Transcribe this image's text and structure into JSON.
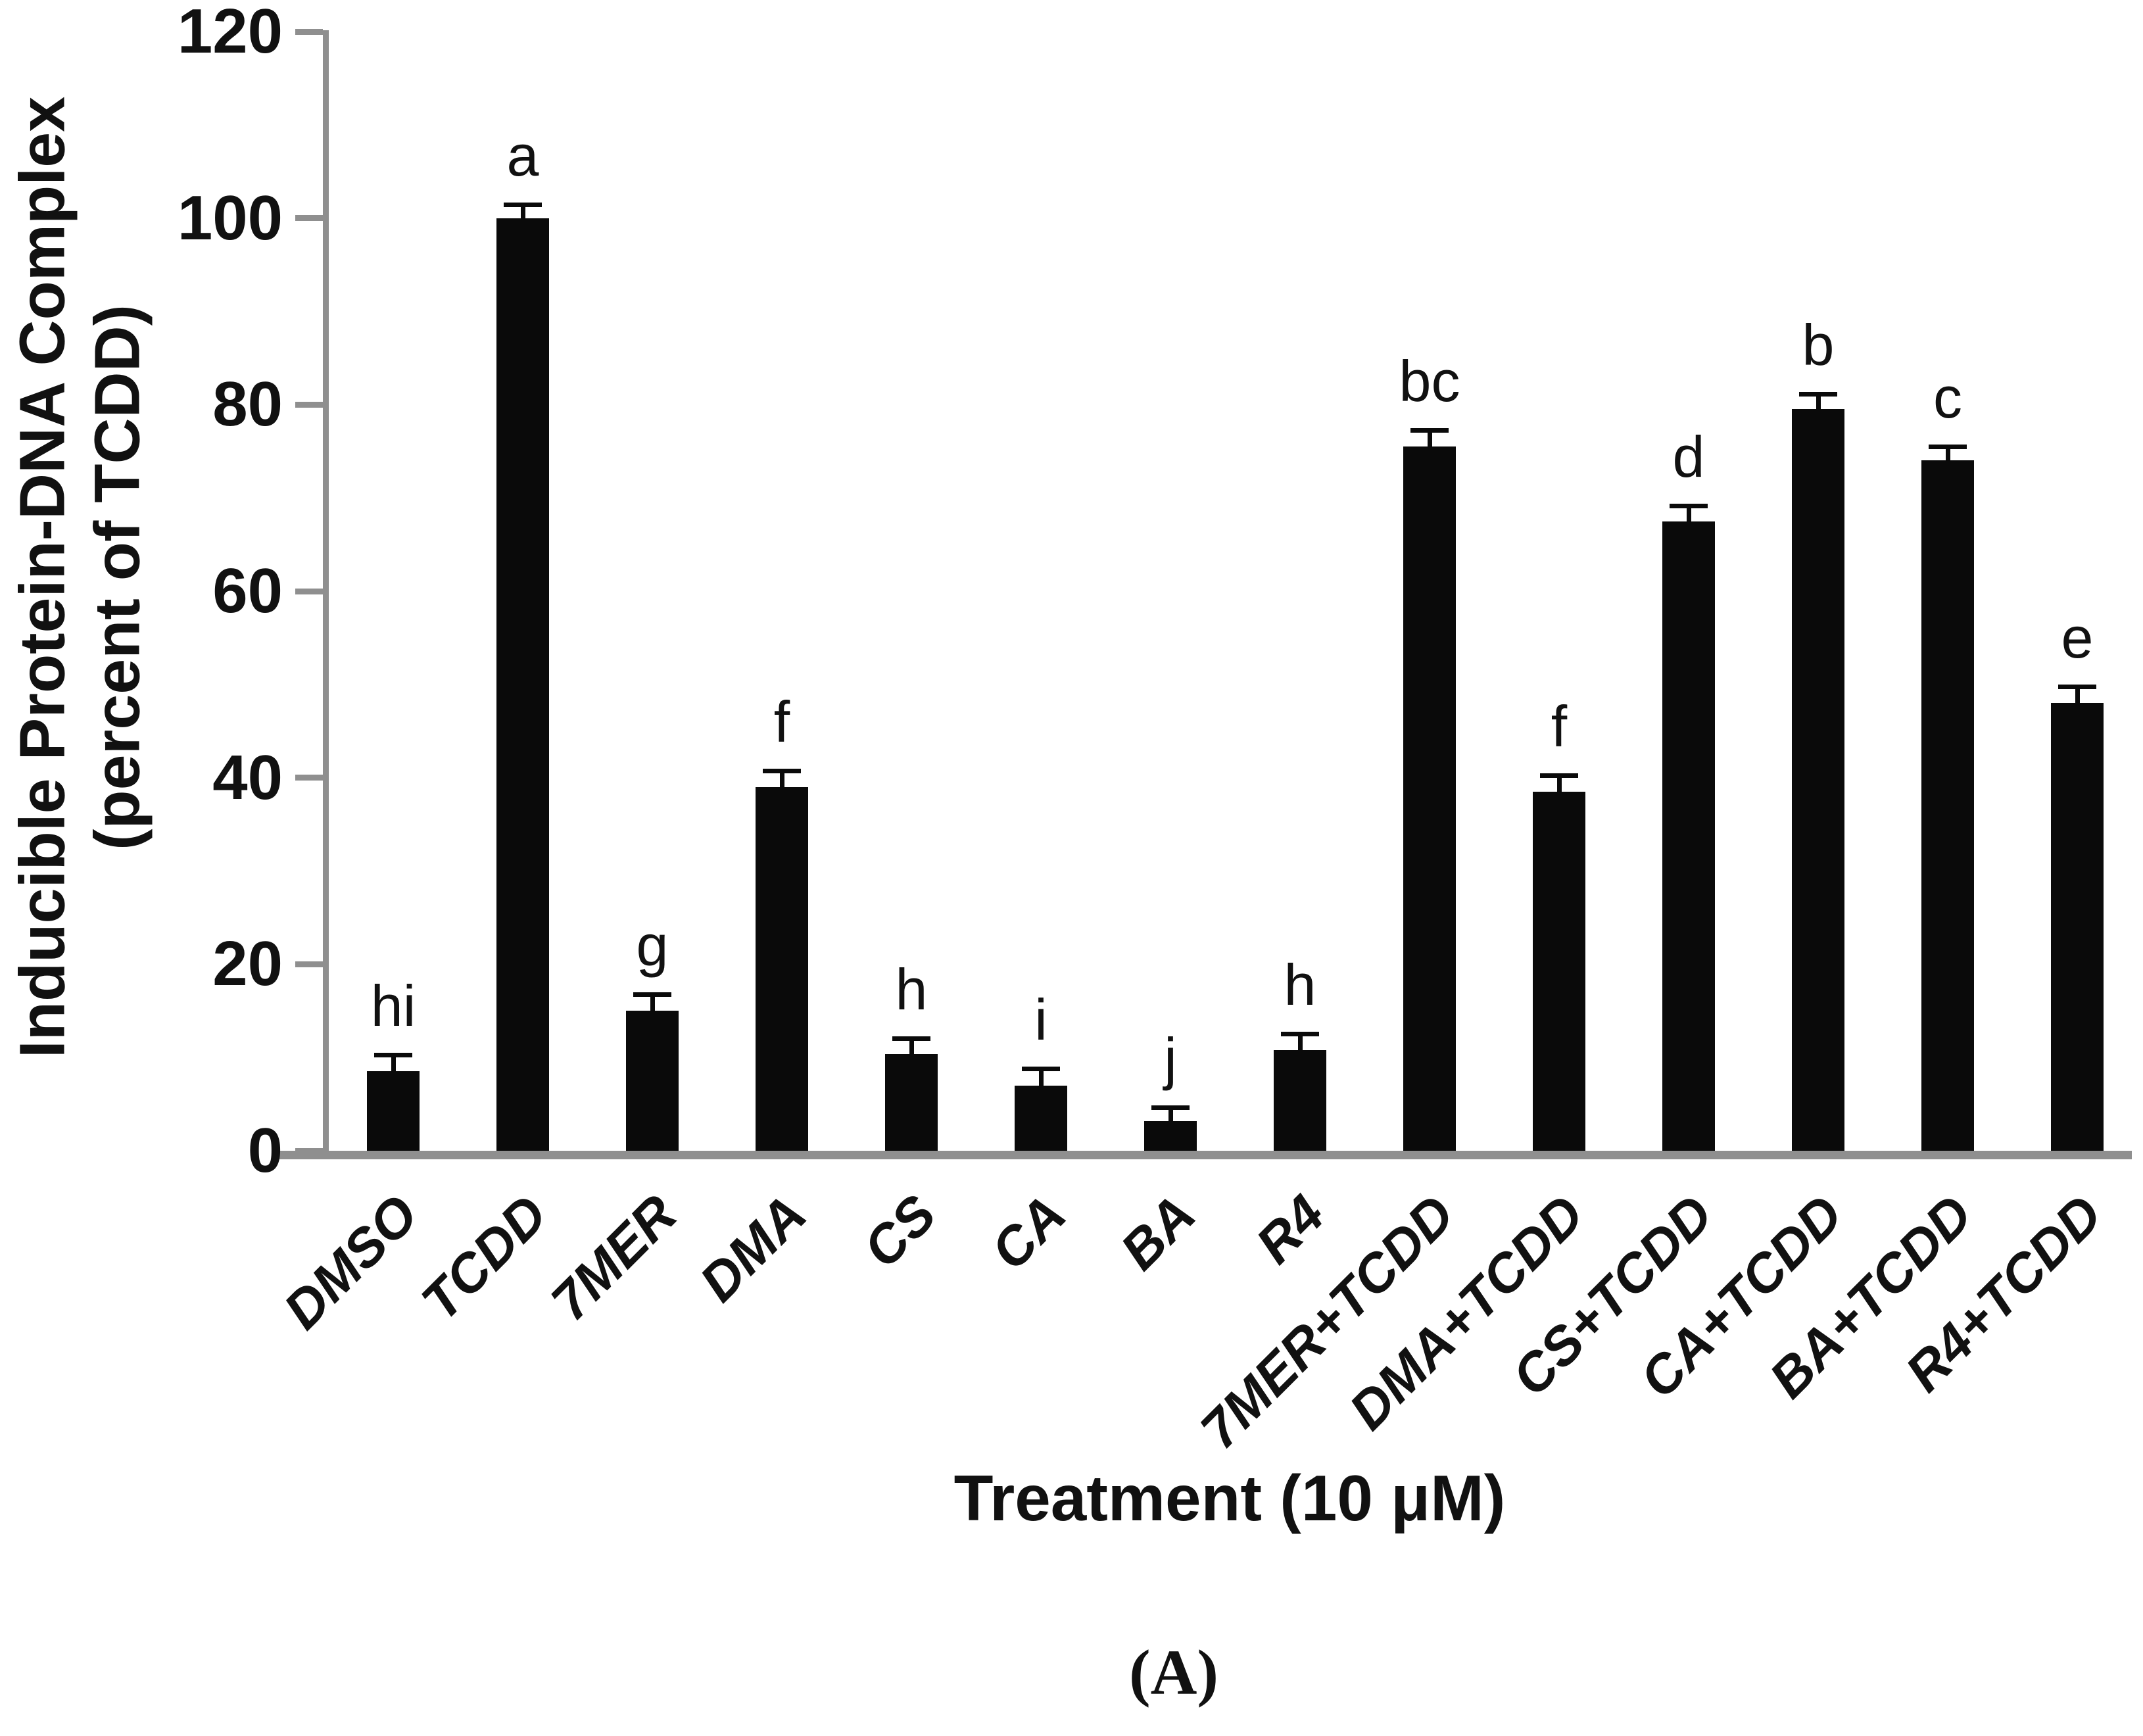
{
  "figure": {
    "panel_label": "(A)"
  },
  "axes": {
    "y_title_line1": "Inducible Protein-DNA Complex",
    "y_title_line2": "(percent of TCDD)",
    "x_title": "Treatment (10 μM)"
  },
  "chart_data": {
    "type": "bar",
    "title": "",
    "xlabel": "Treatment (10 μM)",
    "ylabel": "Inducible Protein-DNA Complex (percent of TCDD)",
    "ylim": [
      0,
      120
    ],
    "yticks": [
      0,
      20,
      40,
      60,
      80,
      100,
      120
    ],
    "grid": false,
    "legend": "none",
    "bar_color": "#0a0a0a",
    "axis_color": "#8f8f8f",
    "categories": [
      "DMSO",
      "TCDD",
      "7MER",
      "DMA",
      "CS",
      "CA",
      "BA",
      "R4",
      "7MER+TCDD",
      "DMA+TCDD",
      "CS+TCDD",
      "CA+TCDD",
      "BA+TCDD",
      "R4+TCDD"
    ],
    "values": [
      8.5,
      100,
      15,
      39,
      10.4,
      7,
      3.2,
      10.8,
      75.5,
      38.5,
      67.5,
      79.5,
      74,
      48
    ],
    "errors": [
      1.5,
      1.2,
      1.5,
      1.5,
      1.4,
      1.5,
      1.2,
      1.5,
      1.5,
      1.5,
      1.4,
      1.4,
      1.2,
      1.5
    ],
    "sig_letters": [
      "hi",
      "a",
      "g",
      "f",
      "h",
      "i",
      "j",
      "h",
      "bc",
      "f",
      "d",
      "b",
      "c",
      "e"
    ]
  }
}
